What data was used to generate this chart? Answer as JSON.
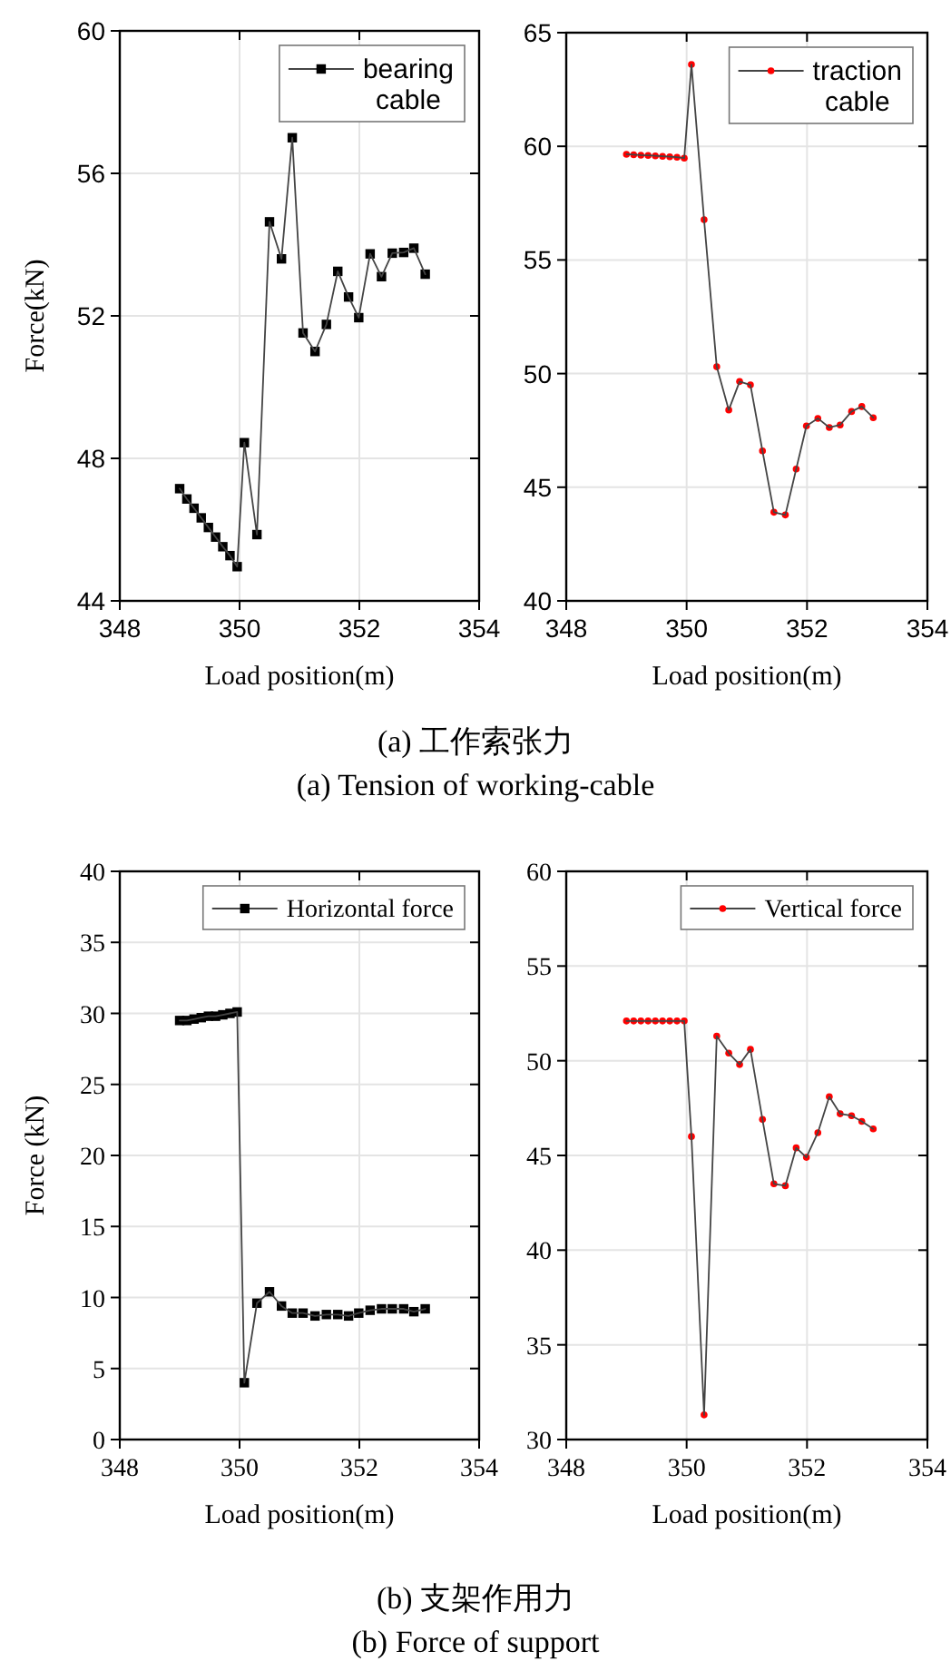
{
  "chart_data": [
    {
      "type": "line",
      "xlabel": "Load position(m)",
      "ylabel": "Force(kN)",
      "xlim": [
        348,
        354
      ],
      "ylim": [
        44,
        60
      ],
      "xticks": [
        348,
        350,
        352,
        354
      ],
      "yticks": [
        44,
        48,
        52,
        56,
        60
      ],
      "grid": true,
      "legend": "top right",
      "marker": "square",
      "line_style": "solid",
      "annotations": [
        "(a) 工作索张力",
        "(a) Tension of working-cable"
      ],
      "series": [
        {
          "name": "bearing cable",
          "color": "#000000",
          "x": [
            349.0,
            349.12,
            349.24,
            349.36,
            349.48,
            349.6,
            349.72,
            349.84,
            349.96,
            350.08,
            350.29,
            350.5,
            350.7,
            350.88,
            351.06,
            351.26,
            351.45,
            351.64,
            351.82,
            351.99,
            352.18,
            352.37,
            352.55,
            352.74,
            352.91,
            353.1
          ],
          "values": [
            47.15,
            46.86,
            46.6,
            46.33,
            46.06,
            45.79,
            45.52,
            45.27,
            44.96,
            48.44,
            45.86,
            54.64,
            53.6,
            57.0,
            51.52,
            51.0,
            51.76,
            53.25,
            52.53,
            51.95,
            53.74,
            53.1,
            53.76,
            53.78,
            53.9,
            53.17
          ]
        }
      ]
    },
    {
      "type": "line",
      "xlabel": "Load position(m)",
      "xlim": [
        348,
        354
      ],
      "ylim": [
        40,
        65
      ],
      "xticks": [
        348,
        350,
        352,
        354
      ],
      "yticks": [
        40,
        45,
        50,
        55,
        60,
        65
      ],
      "grid": true,
      "legend": "top right",
      "marker": "circle",
      "line_style": "solid",
      "series": [
        {
          "name": "traction cable",
          "color": "#ff0000",
          "x": [
            349.0,
            349.12,
            349.24,
            349.36,
            349.48,
            349.6,
            349.72,
            349.84,
            349.96,
            350.08,
            350.29,
            350.5,
            350.7,
            350.88,
            351.06,
            351.26,
            351.45,
            351.64,
            351.82,
            351.99,
            352.18,
            352.37,
            352.55,
            352.74,
            352.91,
            353.1
          ],
          "values": [
            59.65,
            59.63,
            59.61,
            59.6,
            59.58,
            59.56,
            59.54,
            59.52,
            59.48,
            63.6,
            56.77,
            50.3,
            48.4,
            49.65,
            49.5,
            46.6,
            43.9,
            43.78,
            45.8,
            47.7,
            48.03,
            47.63,
            47.74,
            48.33,
            48.55,
            48.06
          ]
        }
      ]
    },
    {
      "type": "line",
      "xlabel": "Load position(m)",
      "ylabel": "Force (kN)",
      "xlim": [
        348,
        354
      ],
      "ylim": [
        0,
        40
      ],
      "xticks": [
        348,
        350,
        352,
        354
      ],
      "yticks": [
        0,
        5,
        10,
        15,
        20,
        25,
        30,
        35,
        40
      ],
      "grid": true,
      "legend": "top right",
      "marker": "square",
      "line_style": "solid",
      "annotations": [
        "(b) 支架作用力",
        "(b) Force of support"
      ],
      "series": [
        {
          "name": "Horizontal force",
          "color": "#000000",
          "x": [
            349.0,
            349.12,
            349.24,
            349.36,
            349.48,
            349.6,
            349.72,
            349.84,
            349.96,
            350.08,
            350.29,
            350.5,
            350.7,
            350.88,
            351.06,
            351.26,
            351.45,
            351.64,
            351.82,
            351.99,
            352.18,
            352.37,
            352.55,
            352.74,
            352.91,
            353.1
          ],
          "values": [
            29.5,
            29.5,
            29.6,
            29.7,
            29.8,
            29.8,
            29.9,
            30.0,
            30.1,
            4.0,
            9.6,
            10.4,
            9.4,
            8.9,
            8.9,
            8.7,
            8.8,
            8.8,
            8.7,
            8.9,
            9.1,
            9.2,
            9.2,
            9.2,
            9.0,
            9.2
          ]
        }
      ]
    },
    {
      "type": "line",
      "xlabel": "Load position(m)",
      "xlim": [
        348,
        354
      ],
      "ylim": [
        30,
        60
      ],
      "xticks": [
        348,
        350,
        352,
        354
      ],
      "yticks": [
        30,
        35,
        40,
        45,
        50,
        55,
        60
      ],
      "grid": true,
      "legend": "top right",
      "marker": "circle",
      "line_style": "solid",
      "series": [
        {
          "name": "Vertical force",
          "color": "#ff0000",
          "x": [
            349.0,
            349.12,
            349.24,
            349.36,
            349.48,
            349.6,
            349.72,
            349.84,
            349.96,
            350.08,
            350.29,
            350.5,
            350.7,
            350.88,
            351.06,
            351.26,
            351.45,
            351.64,
            351.82,
            351.99,
            352.18,
            352.37,
            352.55,
            352.74,
            352.91,
            353.1
          ],
          "values": [
            52.1,
            52.1,
            52.1,
            52.1,
            52.1,
            52.1,
            52.1,
            52.1,
            52.1,
            46.0,
            31.3,
            51.3,
            50.4,
            49.8,
            50.6,
            46.9,
            43.5,
            43.4,
            45.4,
            44.9,
            46.2,
            48.1,
            47.2,
            47.1,
            46.8,
            46.4
          ]
        }
      ]
    }
  ]
}
